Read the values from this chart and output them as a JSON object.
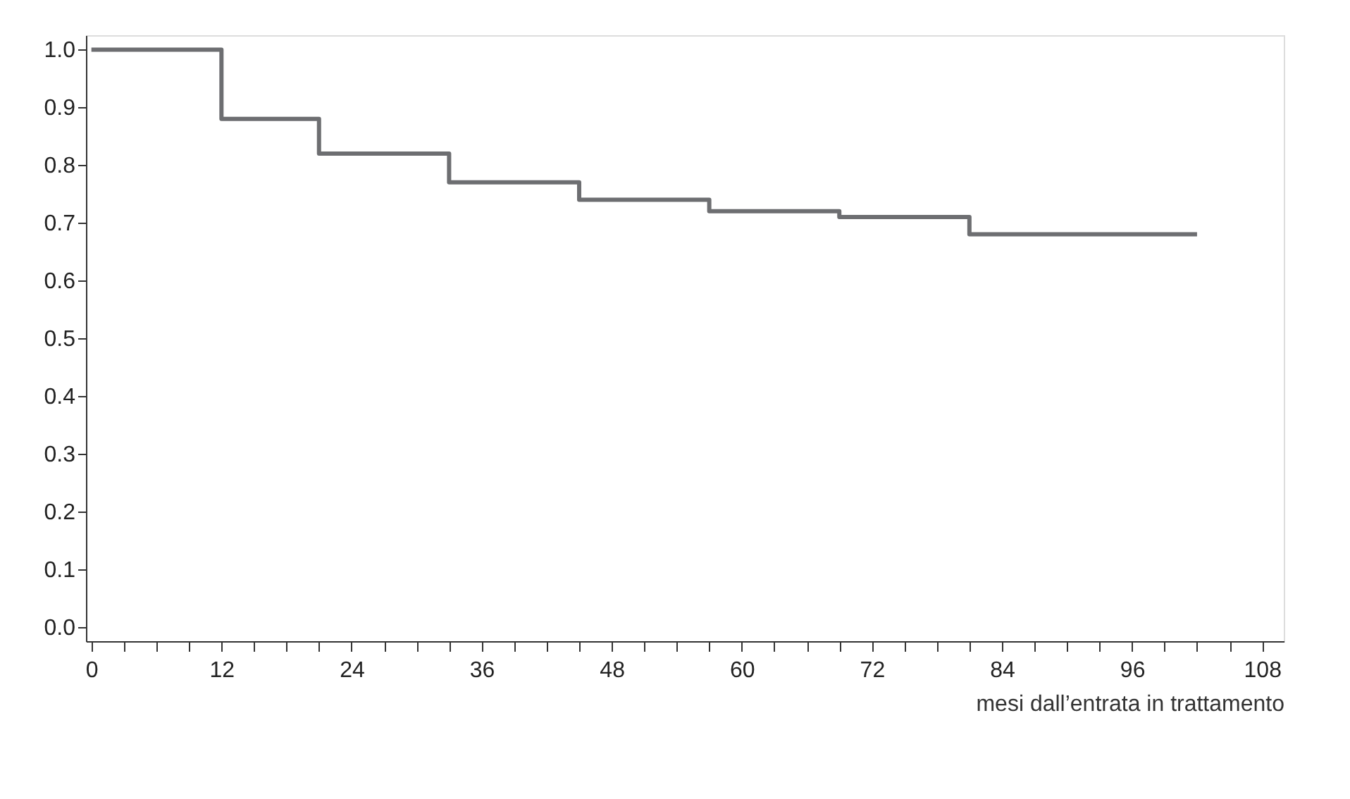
{
  "chart_data": {
    "type": "step",
    "xlabel": "mesi dall’entrata in trattamento",
    "x": [
      0,
      12,
      21,
      33,
      45,
      57,
      69,
      81,
      102
    ],
    "series": [
      {
        "color": "#6d6e71",
        "values": [
          1.0,
          0.88,
          0.82,
          0.77,
          0.74,
          0.72,
          0.71,
          0.68,
          0.68
        ]
      }
    ],
    "xlim": [
      -0.5,
      110
    ],
    "ylim": [
      -0.025,
      1.025
    ],
    "xticks": [
      0,
      {
        "value": 3,
        "label": null
      },
      {
        "value": 6,
        "label": null
      },
      {
        "value": 9,
        "label": null
      },
      12,
      {
        "value": 15,
        "label": null
      },
      {
        "value": 18,
        "label": null
      },
      {
        "value": 21,
        "label": null
      },
      24,
      {
        "value": 27,
        "label": null
      },
      {
        "value": 30,
        "label": null
      },
      {
        "value": 33,
        "label": null
      },
      36,
      {
        "value": 39,
        "label": null
      },
      {
        "value": 42,
        "label": null
      },
      {
        "value": 45,
        "label": null
      },
      48,
      {
        "value": 51,
        "label": null
      },
      {
        "value": 54,
        "label": null
      },
      {
        "value": 57,
        "label": null
      },
      60,
      {
        "value": 63,
        "label": null
      },
      {
        "value": 66,
        "label": null
      },
      {
        "value": 69,
        "label": null
      },
      72,
      {
        "value": 75,
        "label": null
      },
      {
        "value": 78,
        "label": null
      },
      {
        "value": 81,
        "label": null
      },
      84,
      {
        "value": 87,
        "label": null
      },
      {
        "value": 90,
        "label": null
      },
      {
        "value": 93,
        "label": null
      },
      96,
      {
        "value": 99,
        "label": null
      },
      {
        "value": 102,
        "label": null
      },
      {
        "value": 105,
        "label": null
      },
      108
    ],
    "yticks": [
      {
        "value": 0,
        "label": "0.0"
      },
      0.1,
      0.2,
      0.3,
      0.4,
      0.5,
      0.6,
      0.7,
      0.8,
      0.9,
      {
        "value": 1,
        "label": "1.0"
      }
    ],
    "grid": false,
    "line_style": "solid",
    "marker": "none"
  }
}
